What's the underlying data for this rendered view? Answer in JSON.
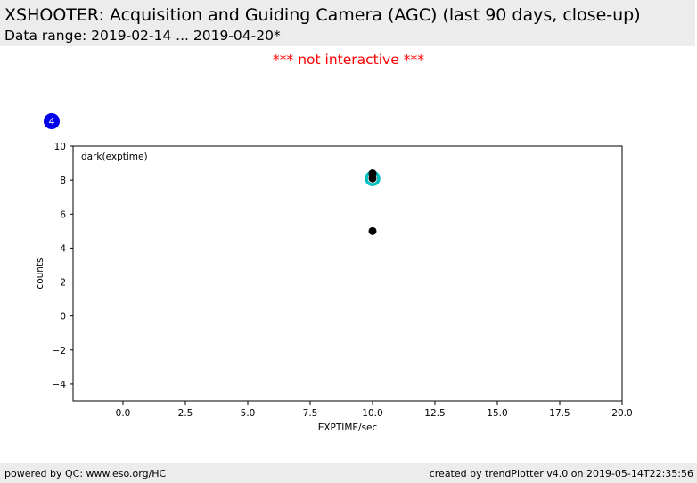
{
  "header": {
    "title": "XSHOOTER: Acquisition and Guiding Camera (AGC) (last 90 days, close-up)",
    "subtitle": "Data range: 2019-02-14 ... 2019-04-20*"
  },
  "notice": "*** not interactive ***",
  "badge": {
    "label": "4",
    "color": "#0000ee"
  },
  "chart_data": {
    "type": "scatter",
    "annotation": "dark(exptime)",
    "xlabel": "EXPTIME/sec",
    "ylabel": "counts",
    "xlim": [
      -2,
      20
    ],
    "ylim": [
      -5,
      10
    ],
    "xticks": [
      0.0,
      2.5,
      5.0,
      7.5,
      10.0,
      12.5,
      15.0,
      17.5,
      20.0
    ],
    "xtick_labels": [
      "0.0",
      "2.5",
      "5.0",
      "7.5",
      "10.0",
      "12.5",
      "15.0",
      "17.5",
      "20.0"
    ],
    "yticks": [
      -4,
      -2,
      0,
      2,
      4,
      6,
      8,
      10
    ],
    "ytick_labels": [
      "−4",
      "−2",
      "0",
      "2",
      "4",
      "6",
      "8",
      "10"
    ],
    "grid": false,
    "series": [
      {
        "values_x": [
          10.0,
          10.0,
          10.0
        ],
        "values_y": [
          8.4,
          8.1,
          5.0
        ],
        "color": "#000000",
        "marker": "filled-circle"
      },
      {
        "values_x": [
          10.0
        ],
        "values_y": [
          8.1
        ],
        "color": "#00c0c0",
        "marker": "ring"
      }
    ]
  },
  "footer": {
    "left": "powered by QC: www.eso.org/HC",
    "right": "created by trendPlotter v4.0 on 2019-05-14T22:35:56"
  }
}
